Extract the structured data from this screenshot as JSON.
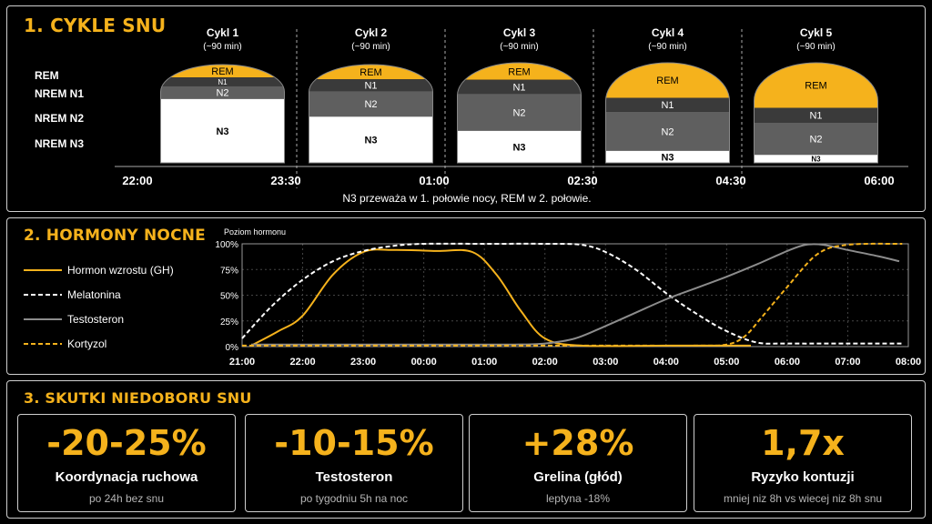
{
  "section1": {
    "title": "1. CYKLE SNU",
    "stage_labels": [
      "REM",
      "NREM N1",
      "NREM N2",
      "NREM N3"
    ],
    "cycles": [
      {
        "name": "Cykl 1",
        "duration": "(~90 min)",
        "REM": 0.13,
        "N1": 0.09,
        "N2": 0.13,
        "N3": 0.65
      },
      {
        "name": "Cykl 2",
        "duration": "(~90 min)",
        "REM": 0.15,
        "N1": 0.12,
        "N2": 0.26,
        "N3": 0.47
      },
      {
        "name": "Cykl 3",
        "duration": "(~90 min)",
        "REM": 0.17,
        "N1": 0.14,
        "N2": 0.37,
        "N3": 0.32
      },
      {
        "name": "Cykl 4",
        "duration": "(~90 min)",
        "REM": 0.35,
        "N1": 0.14,
        "N2": 0.39,
        "N3": 0.12
      },
      {
        "name": "Cykl 5",
        "duration": "(~90 min)",
        "REM": 0.45,
        "N1": 0.15,
        "N2": 0.32,
        "N3": 0.08
      }
    ],
    "time_ticks": [
      "22:00",
      "23:30",
      "01:00",
      "02:30",
      "04:30",
      "06:00"
    ],
    "caption": "N3 przeważa w 1. połowie nocy, REM w 2. połowie.",
    "colors": {
      "REM": "#f5b21c",
      "N1": "#3a3a3a",
      "N2": "#5f5f5f",
      "N3": "#ffffff"
    }
  },
  "section2": {
    "title": "2. HORMONY NOCNE",
    "legend": [
      {
        "name": "Hormon wzrostu (GH)",
        "style": "solid",
        "color": "#f5b21c"
      },
      {
        "name": "Melatonina",
        "style": "dashed",
        "color": "#ffffff"
      },
      {
        "name": "Testosteron",
        "style": "solid",
        "color": "#8c8c8c"
      },
      {
        "name": "Kortyzol",
        "style": "dashed",
        "color": "#f5b21c"
      }
    ]
  },
  "chart_data": {
    "type": "line",
    "ylabel": "Poziom hormonu",
    "y_ticks": [
      "100%",
      "75%",
      "50%",
      "25%",
      "0%"
    ],
    "ylim": [
      0,
      100
    ],
    "x_ticks": [
      "21:00",
      "22:00",
      "23:00",
      "00:00",
      "01:00",
      "02:00",
      "03:00",
      "04:00",
      "05:00",
      "06:00",
      "07:00",
      "08:00"
    ],
    "xlim": [
      0,
      11
    ],
    "grid": true,
    "series": [
      {
        "name": "Hormon wzrostu (GH)",
        "x": [
          0.15,
          0.6,
          1.0,
          1.5,
          2.0,
          2.5,
          3.2,
          3.8,
          4.2,
          4.6,
          5.0,
          5.6,
          7.0,
          8.0,
          8.4
        ],
        "y": [
          1,
          15,
          30,
          70,
          92,
          94,
          93,
          92,
          70,
          35,
          8,
          1,
          1,
          1,
          1
        ]
      },
      {
        "name": "Melatonina",
        "x": [
          0.0,
          0.5,
          1.0,
          1.5,
          2.0,
          2.5,
          3.0,
          4.0,
          5.0,
          5.6,
          6.0,
          6.5,
          7.0,
          7.5,
          8.0,
          8.5,
          9.0,
          10.0,
          10.9
        ],
        "y": [
          8,
          40,
          65,
          83,
          93,
          98,
          100,
          100,
          100,
          99,
          92,
          75,
          52,
          32,
          15,
          4,
          3,
          3,
          3
        ]
      },
      {
        "name": "Testosteron",
        "x": [
          0.15,
          3.0,
          4.0,
          4.5,
          5.0,
          5.5,
          6.0,
          6.5,
          7.0,
          7.5,
          8.0,
          8.5,
          9.0,
          9.3,
          9.6,
          10.0,
          10.5,
          10.85
        ],
        "y": [
          2,
          2,
          2,
          2,
          3,
          8,
          20,
          33,
          46,
          57,
          68,
          80,
          93,
          99,
          99,
          94,
          88,
          83
        ]
      },
      {
        "name": "Kortyzol",
        "x": [
          0.0,
          6.0,
          7.5,
          8.0,
          8.3,
          8.6,
          9.0,
          9.5,
          10.0,
          10.9
        ],
        "y": [
          1,
          1,
          1,
          2,
          10,
          30,
          58,
          90,
          99,
          100
        ]
      }
    ]
  },
  "section3": {
    "title": "3. SKUTKI NIEDOBORU SNU",
    "cards": [
      {
        "value": "-20-25%",
        "label": "Koordynacja ruchowa",
        "sub": "po 24h bez snu"
      },
      {
        "value": "-10-15%",
        "label": "Testosteron",
        "sub": "po tygodniu 5h na noc"
      },
      {
        "value": "+28%",
        "label": "Grelina (głód)",
        "sub": "leptyna -18%"
      },
      {
        "value": "1,7x",
        "label": "Ryzyko kontuzji",
        "sub": "mniej niz 8h vs wiecej niz 8h snu"
      }
    ]
  }
}
